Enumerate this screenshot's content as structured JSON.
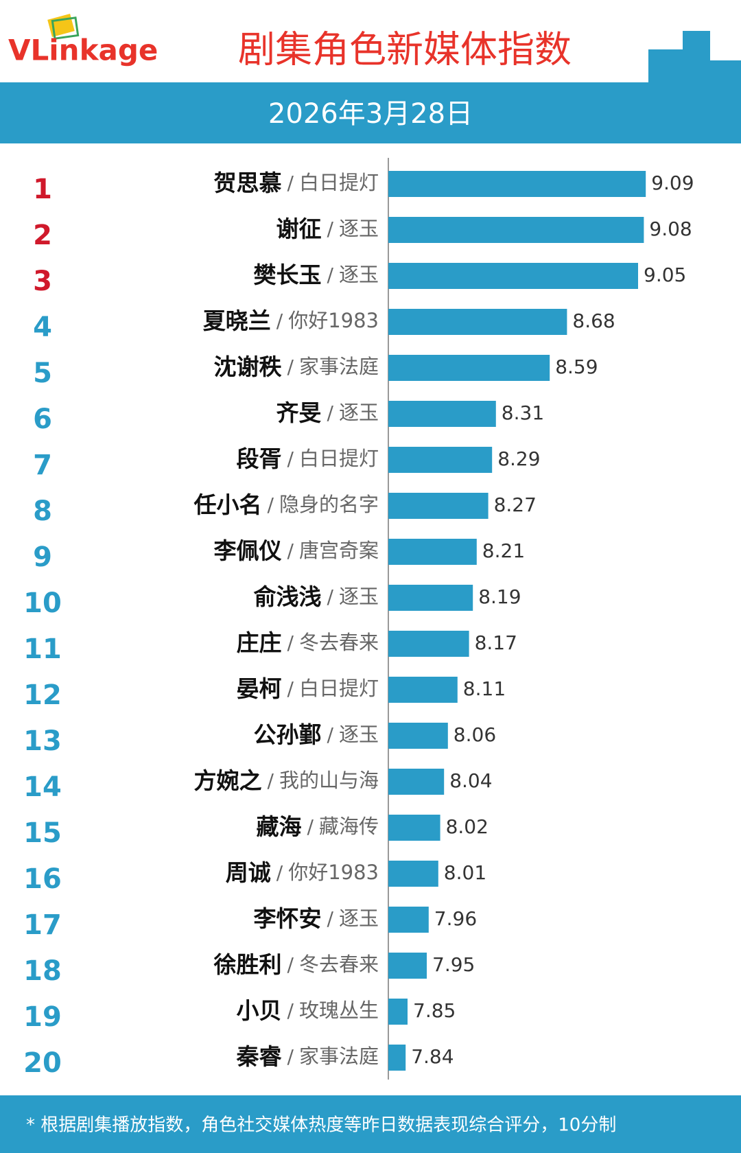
{
  "logo": "VLinkage",
  "chart_data": {
    "type": "hbar",
    "title": "剧集角色新媒体指数",
    "subtitle": "2026年3月28日",
    "ranks": [
      1,
      2,
      3,
      4,
      5,
      6,
      7,
      8,
      9,
      10,
      11,
      12,
      13,
      14,
      15,
      16,
      17,
      18,
      19,
      20
    ],
    "separator": "/",
    "categories": [
      "贺思慕",
      "谢征",
      "樊长玉",
      "夏晓兰",
      "沈谢秩",
      "齐旻",
      "段胥",
      "任小名",
      "李佩仪",
      "俞浅浅",
      "庄庄",
      "晏柯",
      "公孙鄞",
      "方婉之",
      "藏海",
      "周诚",
      "李怀安",
      "徐胜利",
      "小贝",
      "秦睿"
    ],
    "dramas": [
      "白日提灯",
      "逐玉",
      "逐玉",
      "你好1983",
      "家事法庭",
      "逐玉",
      "白日提灯",
      "隐身的名字",
      "唐宫奇案",
      "逐玉",
      "冬去春来",
      "白日提灯",
      "逐玉",
      "我的山与海",
      "藏海传",
      "你好1983",
      "逐玉",
      "冬去春来",
      "玫瑰丛生",
      "家事法庭"
    ],
    "values": [
      9.09,
      9.08,
      9.05,
      8.68,
      8.59,
      8.31,
      8.29,
      8.27,
      8.21,
      8.19,
      8.17,
      8.11,
      8.06,
      8.04,
      8.02,
      8.01,
      7.96,
      7.95,
      7.85,
      7.84
    ],
    "color": "#2a9cc8",
    "top_rank_color": "#d0192b",
    "xlim": [
      7.75,
      9.5
    ],
    "footnote": "* 根据剧集播放指数，角色社交媒体热度等昨日数据表现综合评分，10分制"
  }
}
